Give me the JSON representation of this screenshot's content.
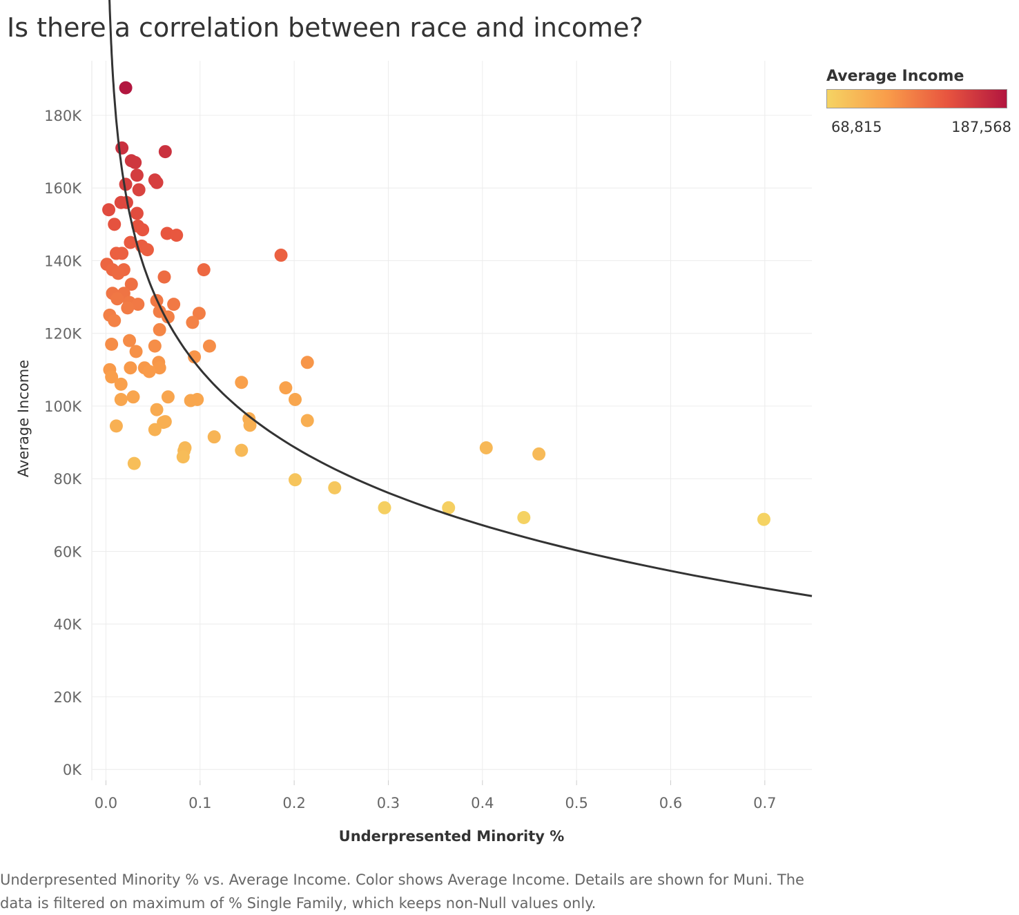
{
  "title": "Is there a correlation between race and income?",
  "legend": {
    "title": "Average Income",
    "min_label": "68,815",
    "max_label": "187,568",
    "colors": [
      "#f5d363",
      "#f99d4a",
      "#e8553f",
      "#b2163f"
    ]
  },
  "caption": "Underpresented Minority % vs. Average Income.  Color shows Average Income.  Details are shown for Muni. The data is filtered on maximum of % Single Family, which keeps non-Null values only.",
  "chart_data": {
    "type": "scatter",
    "xlabel": "Underpresented Minority %",
    "ylabel": "Average Income",
    "xlim": [
      -0.015,
      0.75
    ],
    "ylim": [
      -3000,
      195000
    ],
    "x_ticks": [
      0.0,
      0.1,
      0.2,
      0.3,
      0.4,
      0.5,
      0.6,
      0.7
    ],
    "x_tick_labels": [
      "0.0",
      "0.1",
      "0.2",
      "0.3",
      "0.4",
      "0.5",
      "0.6",
      "0.7"
    ],
    "y_ticks": [
      0,
      20000,
      40000,
      60000,
      80000,
      100000,
      120000,
      140000,
      160000,
      180000
    ],
    "y_tick_labels": [
      "0K",
      "20K",
      "40K",
      "60K",
      "80K",
      "100K",
      "120K",
      "140K",
      "160K",
      "180K"
    ],
    "color_range": [
      68815,
      187568
    ],
    "trend_line": {
      "type": "logarithmic",
      "a": 38800,
      "b": -31000
    },
    "points": [
      [
        0.021,
        187568
      ],
      [
        0.017,
        171000
      ],
      [
        0.063,
        170000
      ],
      [
        0.027,
        167500
      ],
      [
        0.031,
        167000
      ],
      [
        0.033,
        163500
      ],
      [
        0.052,
        162200
      ],
      [
        0.054,
        161500
      ],
      [
        0.021,
        161000
      ],
      [
        0.035,
        159500
      ],
      [
        0.016,
        156000
      ],
      [
        0.022,
        156000
      ],
      [
        0.003,
        154000
      ],
      [
        0.033,
        153000
      ],
      [
        0.009,
        150000
      ],
      [
        0.034,
        149500
      ],
      [
        0.039,
        148500
      ],
      [
        0.065,
        147500
      ],
      [
        0.075,
        147000
      ],
      [
        0.026,
        145000
      ],
      [
        0.038,
        144000
      ],
      [
        0.044,
        143000
      ],
      [
        0.011,
        142000
      ],
      [
        0.017,
        142000
      ],
      [
        0.186,
        141500
      ],
      [
        0.001,
        139000
      ],
      [
        0.007,
        137500
      ],
      [
        0.019,
        137500
      ],
      [
        0.104,
        137500
      ],
      [
        0.013,
        136500
      ],
      [
        0.062,
        135500
      ],
      [
        0.027,
        133500
      ],
      [
        0.007,
        131000
      ],
      [
        0.019,
        131000
      ],
      [
        0.012,
        129500
      ],
      [
        0.054,
        129000
      ],
      [
        0.025,
        128500
      ],
      [
        0.034,
        128000
      ],
      [
        0.072,
        128000
      ],
      [
        0.023,
        127000
      ],
      [
        0.057,
        126000
      ],
      [
        0.099,
        125500
      ],
      [
        0.004,
        125000
      ],
      [
        0.009,
        123500
      ],
      [
        0.066,
        124500
      ],
      [
        0.092,
        123000
      ],
      [
        0.057,
        121000
      ],
      [
        0.025,
        118000
      ],
      [
        0.006,
        117000
      ],
      [
        0.052,
        116500
      ],
      [
        0.11,
        116500
      ],
      [
        0.032,
        115000
      ],
      [
        0.094,
        113500
      ],
      [
        0.214,
        112000
      ],
      [
        0.056,
        112000
      ],
      [
        0.004,
        110000
      ],
      [
        0.026,
        110500
      ],
      [
        0.041,
        110500
      ],
      [
        0.057,
        110500
      ],
      [
        0.046,
        109500
      ],
      [
        0.006,
        108000
      ],
      [
        0.144,
        106500
      ],
      [
        0.016,
        106000
      ],
      [
        0.191,
        105000
      ],
      [
        0.066,
        102500
      ],
      [
        0.029,
        102500
      ],
      [
        0.016,
        101800
      ],
      [
        0.201,
        101800
      ],
      [
        0.097,
        101800
      ],
      [
        0.09,
        101500
      ],
      [
        0.054,
        99000
      ],
      [
        0.152,
        96500
      ],
      [
        0.063,
        95700
      ],
      [
        0.214,
        96000
      ],
      [
        0.153,
        94700
      ],
      [
        0.061,
        95500
      ],
      [
        0.011,
        94500
      ],
      [
        0.052,
        93500
      ],
      [
        0.115,
        91500
      ],
      [
        0.084,
        88500
      ],
      [
        0.083,
        87700
      ],
      [
        0.404,
        88500
      ],
      [
        0.144,
        87800
      ],
      [
        0.46,
        86800
      ],
      [
        0.082,
        86000
      ],
      [
        0.03,
        84200
      ],
      [
        0.201,
        79700
      ],
      [
        0.243,
        77500
      ],
      [
        0.296,
        72000
      ],
      [
        0.364,
        72000
      ],
      [
        0.444,
        69300
      ],
      [
        0.699,
        68815
      ]
    ]
  }
}
